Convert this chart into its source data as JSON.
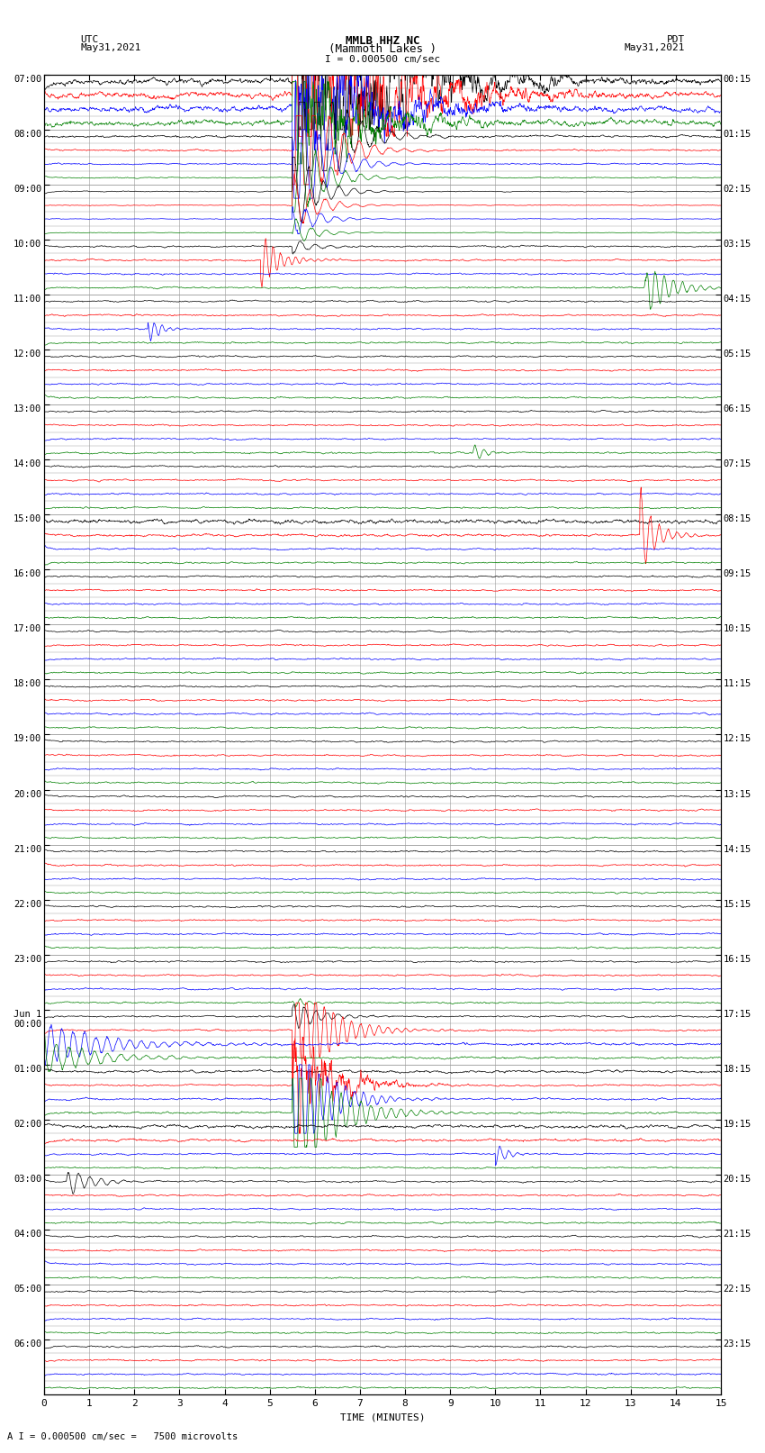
{
  "title_line1": "MMLB HHZ NC",
  "title_line2": "(Mammoth Lakes )",
  "title_scale": "I = 0.000500 cm/sec",
  "left_label_line1": "UTC",
  "left_label_line2": "May31,2021",
  "right_label_line1": "PDT",
  "right_label_line2": "May31,2021",
  "xlabel": "TIME (MINUTES)",
  "bottom_note": "A I = 0.000500 cm/sec =   7500 microvolts",
  "utc_times": [
    "07:00",
    "",
    "",
    "",
    "08:00",
    "",
    "",
    "",
    "09:00",
    "",
    "",
    "",
    "10:00",
    "",
    "",
    "",
    "11:00",
    "",
    "",
    "",
    "12:00",
    "",
    "",
    "",
    "13:00",
    "",
    "",
    "",
    "14:00",
    "",
    "",
    "",
    "15:00",
    "",
    "",
    "",
    "16:00",
    "",
    "",
    "",
    "17:00",
    "",
    "",
    "",
    "18:00",
    "",
    "",
    "",
    "19:00",
    "",
    "",
    "",
    "20:00",
    "",
    "",
    "",
    "21:00",
    "",
    "",
    "",
    "22:00",
    "",
    "",
    "",
    "23:00",
    "",
    "",
    "",
    "Jun 1\n00:00",
    "",
    "",
    "",
    "01:00",
    "",
    "",
    "",
    "02:00",
    "",
    "",
    "",
    "03:00",
    "",
    "",
    "",
    "04:00",
    "",
    "",
    "",
    "05:00",
    "",
    "",
    "",
    "06:00",
    "",
    "",
    ""
  ],
  "pdt_times": [
    "00:15",
    "",
    "",
    "",
    "01:15",
    "",
    "",
    "",
    "02:15",
    "",
    "",
    "",
    "03:15",
    "",
    "",
    "",
    "04:15",
    "",
    "",
    "",
    "05:15",
    "",
    "",
    "",
    "06:15",
    "",
    "",
    "",
    "07:15",
    "",
    "",
    "",
    "08:15",
    "",
    "",
    "",
    "09:15",
    "",
    "",
    "",
    "10:15",
    "",
    "",
    "",
    "11:15",
    "",
    "",
    "",
    "12:15",
    "",
    "",
    "",
    "13:15",
    "",
    "",
    "",
    "14:15",
    "",
    "",
    "",
    "15:15",
    "",
    "",
    "",
    "16:15",
    "",
    "",
    "",
    "17:15",
    "",
    "",
    "",
    "18:15",
    "",
    "",
    "",
    "19:15",
    "",
    "",
    "",
    "20:15",
    "",
    "",
    "",
    "21:15",
    "",
    "",
    "",
    "22:15",
    "",
    "",
    "",
    "23:15",
    "",
    "",
    ""
  ],
  "trace_colors": [
    "black",
    "red",
    "blue",
    "green"
  ],
  "n_rows": 96,
  "minutes": 15,
  "bg_color": "#ffffff",
  "grid_color": "#999999",
  "base_amp": 0.12,
  "eq1_row": 0,
  "eq1_minute": 5.5,
  "eq1_amp": 35.0,
  "eq1_decay_rows": 12,
  "eq2_red_row": 13,
  "eq2_red_minute": 4.8,
  "eq2_red_amp": 1.8,
  "eq2_green_row": 15,
  "eq2_green_minute": 13.3,
  "eq2_green_amp": 2.2,
  "eq3_green_row": 18,
  "eq3_green_minute": 2.3,
  "eq3_green_amp": 0.9,
  "eq4_blue_row": 27,
  "eq4_blue_minute": 9.5,
  "eq4_blue_amp": 0.8,
  "eq5_black_row": 32,
  "eq5_black_minute": 5.5,
  "eq5_black_amp": 1.5,
  "eq6_blue_row": 33,
  "eq6_blue_minute": 13.2,
  "eq6_blue_amp": 2.5,
  "jun1_green_row": 67,
  "jun1_green_minute": 5.5,
  "jun1_green_amp": 0.7,
  "jun1_black_row": 68,
  "jun1_black_minute": 5.5,
  "jun1_black_amp": 1.5,
  "jun1_red_row_1": 69,
  "jun1_red_minute_1": 5.5,
  "jun1_red_amp_1": 5.0,
  "jun1_red_row_2": 73,
  "jun1_red_minute_2": 5.5,
  "jun1_red_amp_2": 8.0,
  "jun1_green_row2": 75,
  "jun1_green_minute2": 5.5,
  "jun1_green_amp2": 5.0,
  "jun1_black_row2": 76,
  "jun1_black_minute2": 10.5,
  "jun1_black_amp2": 1.0
}
